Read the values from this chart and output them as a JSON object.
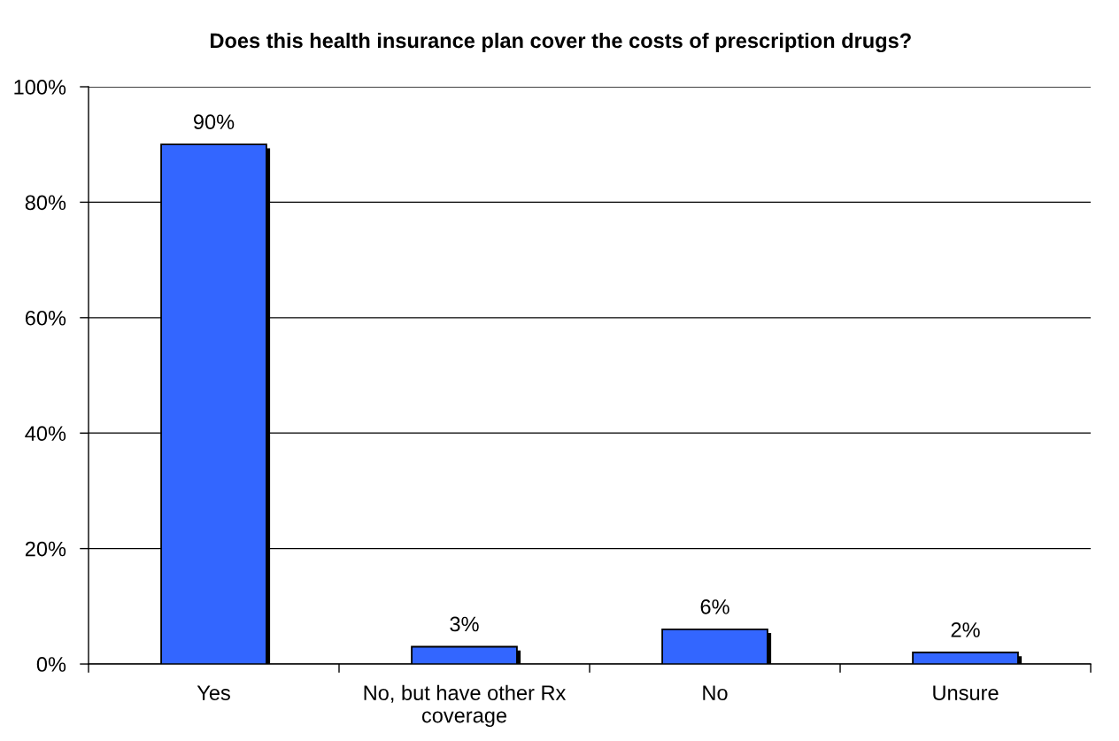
{
  "chart_data": {
    "type": "bar",
    "title": "Does this health insurance plan cover the costs of prescription drugs?",
    "categories": [
      "Yes",
      "No, but have other Rx\ncoverage",
      "No",
      "Unsure"
    ],
    "values": [
      90,
      3,
      6,
      2
    ],
    "value_labels": [
      "90%",
      "3%",
      "6%",
      "2%"
    ],
    "color": "#3366ff",
    "ylim": [
      0,
      100
    ],
    "yticks": [
      {
        "value": 0,
        "label": "0%"
      },
      {
        "value": 20,
        "label": "20%"
      },
      {
        "value": 40,
        "label": "40%"
      },
      {
        "value": 60,
        "label": "60%"
      },
      {
        "value": 80,
        "label": "80%"
      },
      {
        "value": 100,
        "label": "100%"
      }
    ],
    "grid": "y"
  }
}
